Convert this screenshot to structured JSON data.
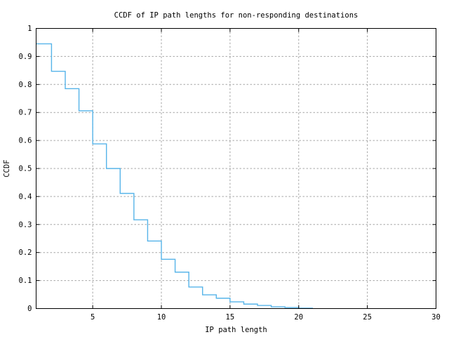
{
  "window": {
    "background_color": "#ffffff",
    "text_color": "#000000"
  },
  "chart_data": {
    "type": "line",
    "line_style": "steps-post",
    "title": "CCDF of IP path lengths for non-responding destinations",
    "xlabel": "IP path length",
    "ylabel": "CCDF",
    "x": [
      1,
      2,
      3,
      4,
      5,
      6,
      7,
      8,
      9,
      10,
      11,
      12,
      13,
      14,
      15,
      16,
      17,
      18,
      19,
      20,
      21
    ],
    "values": [
      0.945,
      0.847,
      0.785,
      0.706,
      0.588,
      0.5,
      0.411,
      0.317,
      0.241,
      0.176,
      0.13,
      0.077,
      0.049,
      0.037,
      0.024,
      0.016,
      0.011,
      0.006,
      0.0035,
      0.0015,
      0
    ],
    "xlim": [
      0.88,
      30
    ],
    "ylim": [
      0,
      1
    ],
    "x_tick_labels": [
      "5",
      "10",
      "15",
      "20",
      "25",
      "30"
    ],
    "y_tick_labels": [
      "0",
      "0.1",
      "0.2",
      "0.3",
      "0.4",
      "0.5",
      "0.6",
      "0.7",
      "0.8",
      "0.9",
      "1"
    ],
    "grid": true,
    "legend": "none",
    "line_color": "#56b4e9",
    "grid_color": "#a6a6a6",
    "border_color": "#000000"
  }
}
